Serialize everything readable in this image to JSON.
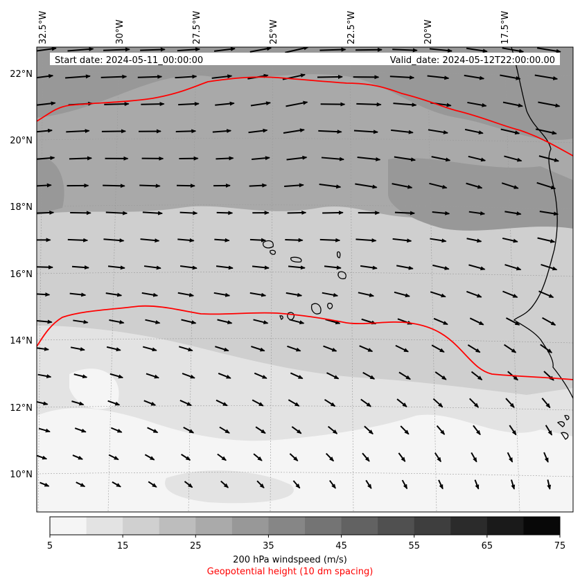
{
  "map": {
    "start_date_text": "Start date: 2024-05-11_00:00:00",
    "valid_date_text": "Valid_date: 2024-05-12T22:00:00.00",
    "lon_labels": [
      "32.5°W",
      "30°W",
      "27.5°W",
      "25°W",
      "22.5°W",
      "20°W",
      "17.5°W"
    ],
    "lat_labels": [
      "22°N",
      "20°N",
      "18°N",
      "16°N",
      "14°N",
      "12°N",
      "10°N"
    ],
    "contour_color": "#ff0000",
    "coast_color": "#000000",
    "vector_color": "#000000"
  },
  "colorbar": {
    "ticks": [
      "5",
      "15",
      "25",
      "35",
      "45",
      "55",
      "65",
      "75"
    ],
    "colors": [
      "#f5f5f5",
      "#e3e3e3",
      "#d0d0d0",
      "#bdbdbd",
      "#aaaaaa",
      "#989898",
      "#868686",
      "#747474",
      "#626262",
      "#505050",
      "#3e3e3e",
      "#2b2b2b",
      "#1a1a1a",
      "#080808"
    ],
    "label": "200 hPa windspeed (m/s)",
    "sublabel": "Geopotential height (10 dm spacing)",
    "sublabel_color": "#ff0000"
  }
}
